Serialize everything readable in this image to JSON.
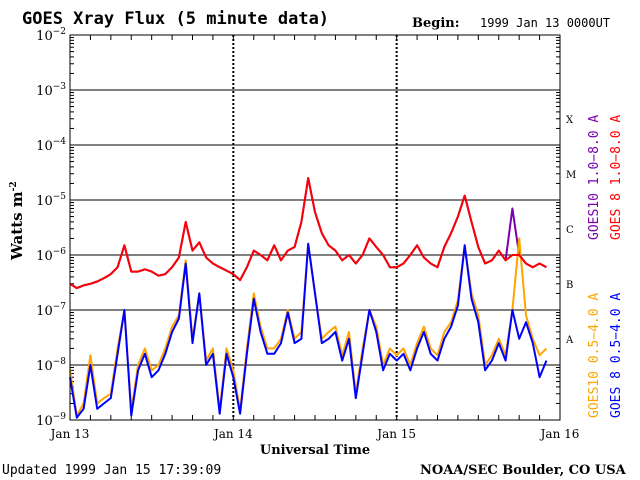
{
  "chart_data": {
    "type": "line",
    "title": "GOES Xray Flux (5 minute data)",
    "begin_label": "Begin:",
    "begin_value": "1999 Jan 13 0000UT",
    "xlabel": "Universal Time",
    "ylabel": "Watts m",
    "ylabel_exponent": "-2",
    "scale": "log",
    "ylim": [
      1e-09,
      0.01
    ],
    "xlim": [
      0,
      72
    ],
    "x_unit": "hours since 1999 Jan 13 00:00 UT",
    "grid": true,
    "y_ticks": [
      {
        "value": 0.01,
        "base": "10",
        "exp": "−2"
      },
      {
        "value": 0.001,
        "base": "10",
        "exp": "−3"
      },
      {
        "value": 0.0001,
        "base": "10",
        "exp": "−4"
      },
      {
        "value": 1e-05,
        "base": "10",
        "exp": "−5"
      },
      {
        "value": 1e-06,
        "base": "10",
        "exp": "−6"
      },
      {
        "value": 1e-07,
        "base": "10",
        "exp": "−7"
      },
      {
        "value": 1e-08,
        "base": "10",
        "exp": "−8"
      },
      {
        "value": 1e-09,
        "base": "10",
        "exp": "−9"
      }
    ],
    "x_ticks": [
      {
        "hour": 0,
        "label": "Jan 13"
      },
      {
        "hour": 24,
        "label": "Jan 14"
      },
      {
        "hour": 48,
        "label": "Jan 15"
      },
      {
        "hour": 72,
        "label": "Jan 16"
      }
    ],
    "flare_classes": [
      {
        "label": "X",
        "value": 0.0003
      },
      {
        "label": "M",
        "value": 3e-05
      },
      {
        "label": "C",
        "value": 3e-06
      },
      {
        "label": "B",
        "value": 3e-07
      },
      {
        "label": "A",
        "value": 3e-08
      }
    ],
    "series": [
      {
        "name": "GOES10 1.0−8.0 A",
        "color": "#7a00b0",
        "x": [
          0,
          1,
          2,
          3,
          4,
          5,
          6,
          7,
          8,
          9,
          10,
          11,
          12,
          13,
          14,
          15,
          16,
          17,
          18,
          19,
          20,
          21,
          22,
          23,
          24,
          25,
          26,
          27,
          28,
          29,
          30,
          31,
          32,
          33,
          34,
          35,
          36,
          37,
          38,
          39,
          40,
          41,
          42,
          43,
          44,
          45,
          46,
          47,
          48,
          49,
          50,
          51,
          52,
          53,
          54,
          55,
          56,
          57,
          58,
          59,
          60,
          61,
          62,
          63,
          64,
          65,
          66,
          67,
          68,
          69,
          70
        ],
        "y": [
          3e-07,
          2.5e-07,
          2.8e-07,
          3e-07,
          3.3e-07,
          3.8e-07,
          4.5e-07,
          6e-07,
          1.5e-06,
          5e-07,
          5e-07,
          5.5e-07,
          5e-07,
          4.2e-07,
          4.5e-07,
          6e-07,
          9e-07,
          4e-06,
          1.2e-06,
          1.7e-06,
          9e-07,
          7e-07,
          6e-07,
          5.2e-07,
          4.5e-07,
          3.5e-07,
          6e-07,
          1.2e-06,
          1e-06,
          8e-07,
          1.5e-06,
          8e-07,
          1.2e-06,
          1.4e-06,
          4e-06,
          2.5e-05,
          6e-06,
          2.5e-06,
          1.5e-06,
          1.2e-06,
          8e-07,
          1e-06,
          7e-07,
          1e-06,
          2e-06,
          1.4e-06,
          1e-06,
          6e-07,
          6e-07,
          7e-07,
          1e-06,
          1.5e-06,
          9e-07,
          7e-07,
          6e-07,
          1.4e-06,
          2.5e-06,
          5e-06,
          1.2e-05,
          4e-06,
          1.4e-06,
          7e-07,
          8e-07,
          1.2e-06,
          8e-07,
          7e-06,
          1e-06,
          7e-07,
          6e-07,
          7e-07,
          6e-07
        ],
        "note": "marks hidden beneath GOES 8 1.0−8.0 A except near hour 65"
      },
      {
        "name": "GOES 8 1.0−8.0 A",
        "color": "#ff0000",
        "x": [
          0,
          1,
          2,
          3,
          4,
          5,
          6,
          7,
          8,
          9,
          10,
          11,
          12,
          13,
          14,
          15,
          16,
          17,
          18,
          19,
          20,
          21,
          22,
          23,
          24,
          25,
          26,
          27,
          28,
          29,
          30,
          31,
          32,
          33,
          34,
          35,
          36,
          37,
          38,
          39,
          40,
          41,
          42,
          43,
          44,
          45,
          46,
          47,
          48,
          49,
          50,
          51,
          52,
          53,
          54,
          55,
          56,
          57,
          58,
          59,
          60,
          61,
          62,
          63,
          64,
          65,
          66,
          67,
          68,
          69,
          70
        ],
        "y": [
          3e-07,
          2.5e-07,
          2.8e-07,
          3e-07,
          3.3e-07,
          3.8e-07,
          4.5e-07,
          6e-07,
          1.5e-06,
          5e-07,
          5e-07,
          5.5e-07,
          5e-07,
          4.2e-07,
          4.5e-07,
          6e-07,
          9e-07,
          4e-06,
          1.2e-06,
          1.7e-06,
          9e-07,
          7e-07,
          6e-07,
          5.2e-07,
          4.5e-07,
          3.5e-07,
          6e-07,
          1.2e-06,
          1e-06,
          8e-07,
          1.5e-06,
          8e-07,
          1.2e-06,
          1.4e-06,
          4e-06,
          2.5e-05,
          6e-06,
          2.5e-06,
          1.5e-06,
          1.2e-06,
          8e-07,
          1e-06,
          7e-07,
          1e-06,
          2e-06,
          1.4e-06,
          1e-06,
          6e-07,
          6e-07,
          7e-07,
          1e-06,
          1.5e-06,
          9e-07,
          7e-07,
          6e-07,
          1.4e-06,
          2.5e-06,
          5e-06,
          1.2e-05,
          4e-06,
          1.4e-06,
          7e-07,
          8e-07,
          1.2e-06,
          8e-07,
          1e-06,
          1e-06,
          7e-07,
          6e-07,
          7e-07,
          6e-07
        ]
      },
      {
        "name": "GOES10 0.5−4.0 A",
        "color": "#ffa500",
        "x": [
          0,
          1,
          2,
          3,
          4,
          5,
          6,
          7,
          8,
          9,
          10,
          11,
          12,
          13,
          14,
          15,
          16,
          17,
          18,
          19,
          20,
          21,
          22,
          23,
          24,
          25,
          26,
          27,
          28,
          29,
          30,
          31,
          32,
          33,
          34,
          35,
          36,
          37,
          38,
          39,
          40,
          41,
          42,
          43,
          44,
          45,
          46,
          47,
          48,
          49,
          50,
          51,
          52,
          53,
          54,
          55,
          56,
          57,
          58,
          59,
          60,
          61,
          62,
          63,
          64,
          65,
          66,
          67,
          68,
          69,
          70
        ],
        "y": [
          8e-09,
          1.2e-09,
          2e-09,
          1.5e-08,
          2e-09,
          2.5e-09,
          3e-09,
          2e-08,
          1e-07,
          1.5e-09,
          1e-08,
          2e-08,
          8e-09,
          1e-08,
          2e-08,
          5e-08,
          8e-08,
          8e-07,
          3e-08,
          2e-07,
          1.2e-08,
          2e-08,
          1.5e-09,
          2e-08,
          8e-09,
          1.5e-09,
          2e-08,
          2e-07,
          5e-08,
          2e-08,
          2e-08,
          3e-08,
          1e-07,
          3e-08,
          4e-08,
          1.6e-06,
          2e-07,
          3e-08,
          4e-08,
          5e-08,
          1.5e-08,
          4e-08,
          3e-09,
          2e-08,
          1e-07,
          5e-08,
          1e-08,
          2e-08,
          1.5e-08,
          2e-08,
          1e-08,
          2.5e-08,
          5e-08,
          2e-08,
          1.5e-08,
          4e-08,
          6e-08,
          1.5e-07,
          1.5e-06,
          2e-07,
          8e-08,
          1e-08,
          1.5e-08,
          3e-08,
          1.5e-08,
          1e-07,
          2e-06,
          8e-08,
          3e-08,
          1.5e-08,
          2e-08
        ]
      },
      {
        "name": "GOES 8 0.5−4.0 A",
        "color": "#0000ff",
        "x": [
          0,
          1,
          2,
          3,
          4,
          5,
          6,
          7,
          8,
          9,
          10,
          11,
          12,
          13,
          14,
          15,
          16,
          17,
          18,
          19,
          20,
          21,
          22,
          23,
          24,
          25,
          26,
          27,
          28,
          29,
          30,
          31,
          32,
          33,
          34,
          35,
          36,
          37,
          38,
          39,
          40,
          41,
          42,
          43,
          44,
          45,
          46,
          47,
          48,
          49,
          50,
          51,
          52,
          53,
          54,
          55,
          56,
          57,
          58,
          59,
          60,
          61,
          62,
          63,
          64,
          65,
          66,
          67,
          68,
          69,
          70
        ],
        "y": [
          6e-09,
          1.1e-09,
          1.6e-09,
          1e-08,
          1.6e-09,
          2e-09,
          2.5e-09,
          1.6e-08,
          1e-07,
          1.2e-09,
          8e-09,
          1.6e-08,
          6e-09,
          8e-09,
          1.6e-08,
          4e-08,
          7e-08,
          7e-07,
          2.5e-08,
          2e-07,
          1e-08,
          1.6e-08,
          1.3e-09,
          1.6e-08,
          6e-09,
          1.3e-09,
          1.6e-08,
          1.6e-07,
          4e-08,
          1.6e-08,
          1.6e-08,
          2.5e-08,
          9e-08,
          2.5e-08,
          3e-08,
          1.6e-06,
          2e-07,
          2.5e-08,
          3e-08,
          4e-08,
          1.2e-08,
          3e-08,
          2.5e-09,
          1.6e-08,
          1e-07,
          4e-08,
          8e-09,
          1.6e-08,
          1.2e-08,
          1.6e-08,
          8e-09,
          2e-08,
          4e-08,
          1.6e-08,
          1.2e-08,
          3e-08,
          5e-08,
          1.2e-07,
          1.5e-06,
          1.6e-07,
          6e-08,
          8e-09,
          1.2e-08,
          2.5e-08,
          1.2e-08,
          1e-07,
          3e-08,
          6e-08,
          2.5e-08,
          6e-09,
          1.2e-08
        ]
      }
    ],
    "legend_placement": "right, vertical"
  },
  "footer": {
    "updated": "Updated 1999 Jan 15 17:39:09",
    "credit": "NOAA/SEC Boulder, CO USA"
  }
}
